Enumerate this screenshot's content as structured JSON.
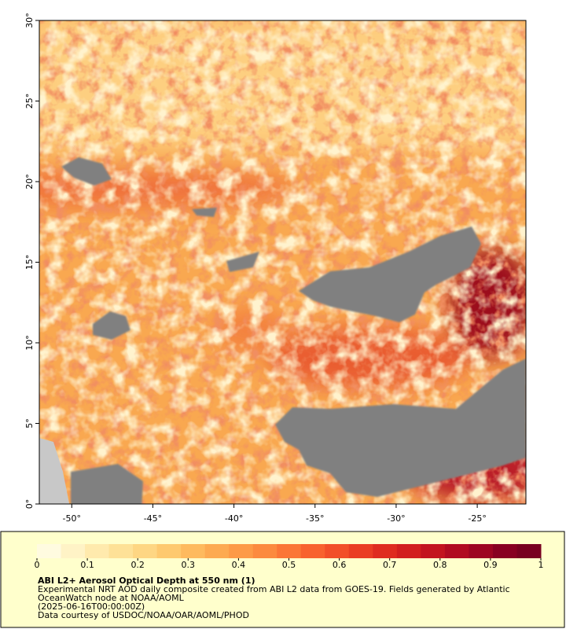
{
  "map": {
    "lonlim": [
      -52,
      -22
    ],
    "latlim": [
      0,
      30
    ],
    "lon_ticks": [
      {
        "value": -50,
        "label": "-50°"
      },
      {
        "value": -45,
        "label": "-45°"
      },
      {
        "value": -40,
        "label": "-40°"
      },
      {
        "value": -35,
        "label": "-35°"
      },
      {
        "value": -30,
        "label": "-30°"
      },
      {
        "value": -25,
        "label": "-25°"
      }
    ],
    "lat_ticks": [
      {
        "value": 0,
        "label": "0°"
      },
      {
        "value": 5,
        "label": "5°"
      },
      {
        "value": 10,
        "label": "10°"
      },
      {
        "value": 15,
        "label": "15°"
      },
      {
        "value": 20,
        "label": "20°"
      },
      {
        "value": 25,
        "label": "25°"
      },
      {
        "value": 30,
        "label": "30°"
      }
    ]
  },
  "colorbar": {
    "range": [
      0,
      1
    ],
    "ticks": [
      0,
      0.1,
      0.2,
      0.3,
      0.4,
      0.5,
      0.6,
      0.7,
      0.8,
      0.9,
      1
    ],
    "colors": [
      "#fffbe0",
      "#fff3c6",
      "#ffeaad",
      "#fee197",
      "#fed683",
      "#fec96f",
      "#feba5e",
      "#fdaa51",
      "#fd9a47",
      "#fc8a3f",
      "#fb7637",
      "#f8622f",
      "#f24f29",
      "#ea3d24",
      "#df2c20",
      "#d21f1f",
      "#c3141f",
      "#b10b21",
      "#9d0522",
      "#880022",
      "#780020"
    ]
  },
  "caption": {
    "title": "ABI L2+ Aerosol Optical Depth at 550 nm (1)",
    "description": [
      "Experimental NRT AOD daily composite created from ABI L2 data from GOES-19. Fields generated by Atlantic",
      "OceanWatch node at NOAA/AOML"
    ],
    "time": "(2025-06-16T00:00:00Z)",
    "credit": "Data courtesy of USDOC/NOAA/OAR/AOML/PHOD"
  }
}
